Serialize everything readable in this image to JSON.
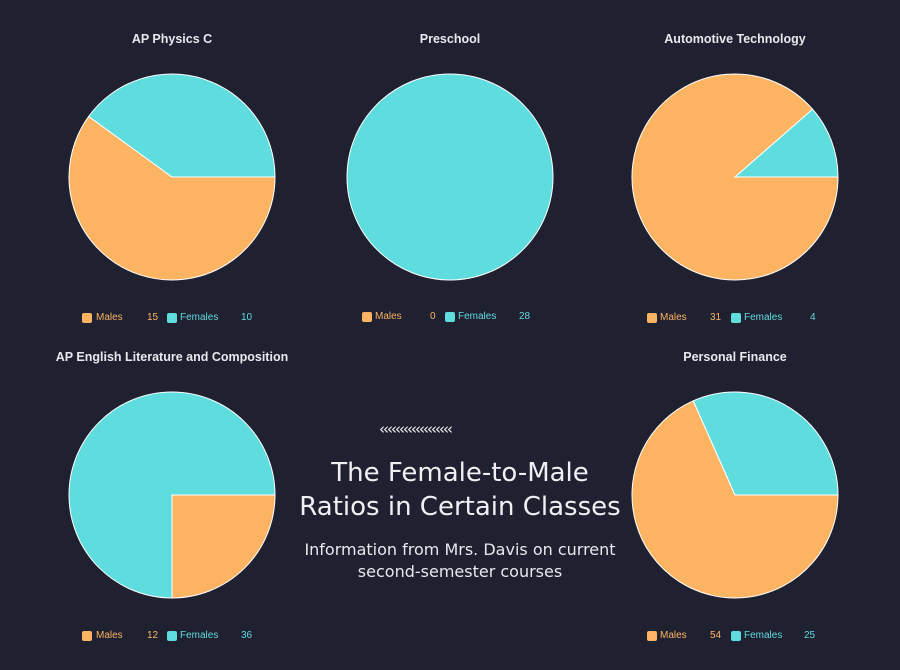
{
  "page": {
    "arrows": "‹‹‹‹‹‹‹‹‹‹‹‹‹‹‹‹‹‹",
    "title_line1": "The Female-to-Male",
    "title_line2": "Ratios in Certain Classes",
    "subtitle_line1": "Information from Mrs. Davis on current",
    "subtitle_line2": "second-semester courses"
  },
  "colors": {
    "males": "#fdb462",
    "females": "#5fdcde",
    "background": "#1f2030"
  },
  "chart_data": [
    {
      "type": "pie",
      "title": "AP Physics C",
      "labels": [
        "Males",
        "Females"
      ],
      "values": [
        15,
        10
      ]
    },
    {
      "type": "pie",
      "title": "Preschool",
      "labels": [
        "Males",
        "Females"
      ],
      "values": [
        0,
        28
      ]
    },
    {
      "type": "pie",
      "title": "Automotive Technology",
      "labels": [
        "Males",
        "Females"
      ],
      "values": [
        31,
        4
      ]
    },
    {
      "type": "pie",
      "title": "AP English Literature and Composition",
      "labels": [
        "Males",
        "Females"
      ],
      "values": [
        12,
        36
      ]
    },
    {
      "type": "pie",
      "title": "Personal Finance",
      "labels": [
        "Males",
        "Females"
      ],
      "values": [
        54,
        25
      ]
    }
  ]
}
